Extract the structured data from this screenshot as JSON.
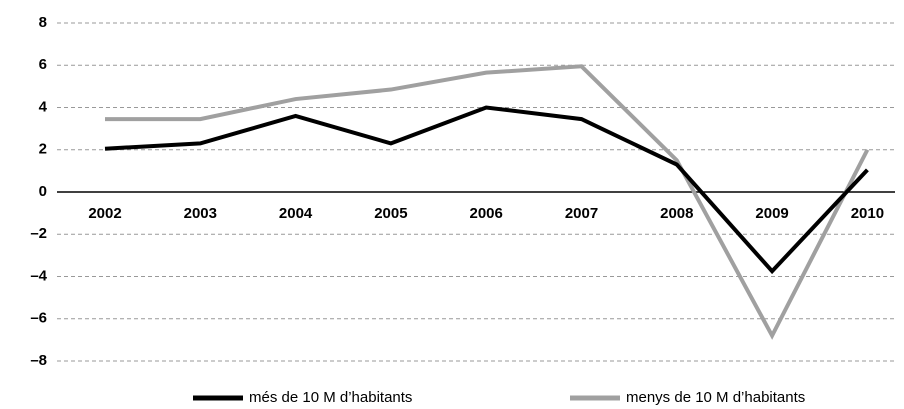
{
  "chart_data": {
    "type": "line",
    "categories": [
      "2002",
      "2003",
      "2004",
      "2005",
      "2006",
      "2007",
      "2008",
      "2009",
      "2010"
    ],
    "series": [
      {
        "name": "més de 10 M d’habitants",
        "color": "#000000",
        "values": [
          2.05,
          2.3,
          3.6,
          2.3,
          4.0,
          3.45,
          1.3,
          -3.75,
          1.05
        ]
      },
      {
        "name": "menys de 10 M d’habitants",
        "color": "#a0a0a0",
        "values": [
          3.45,
          3.45,
          4.4,
          4.85,
          5.65,
          5.95,
          1.5,
          -6.8,
          2.0
        ]
      }
    ],
    "ylim": [
      -8,
      8
    ],
    "yticks": [
      8,
      6,
      4,
      2,
      0,
      {
        "value": -2,
        "label": "–2"
      },
      {
        "value": -4,
        "label": "–4"
      },
      {
        "value": -6,
        "label": "–6"
      },
      {
        "value": -8,
        "label": "–8"
      }
    ],
    "grid": true,
    "legend": "bottom"
  }
}
